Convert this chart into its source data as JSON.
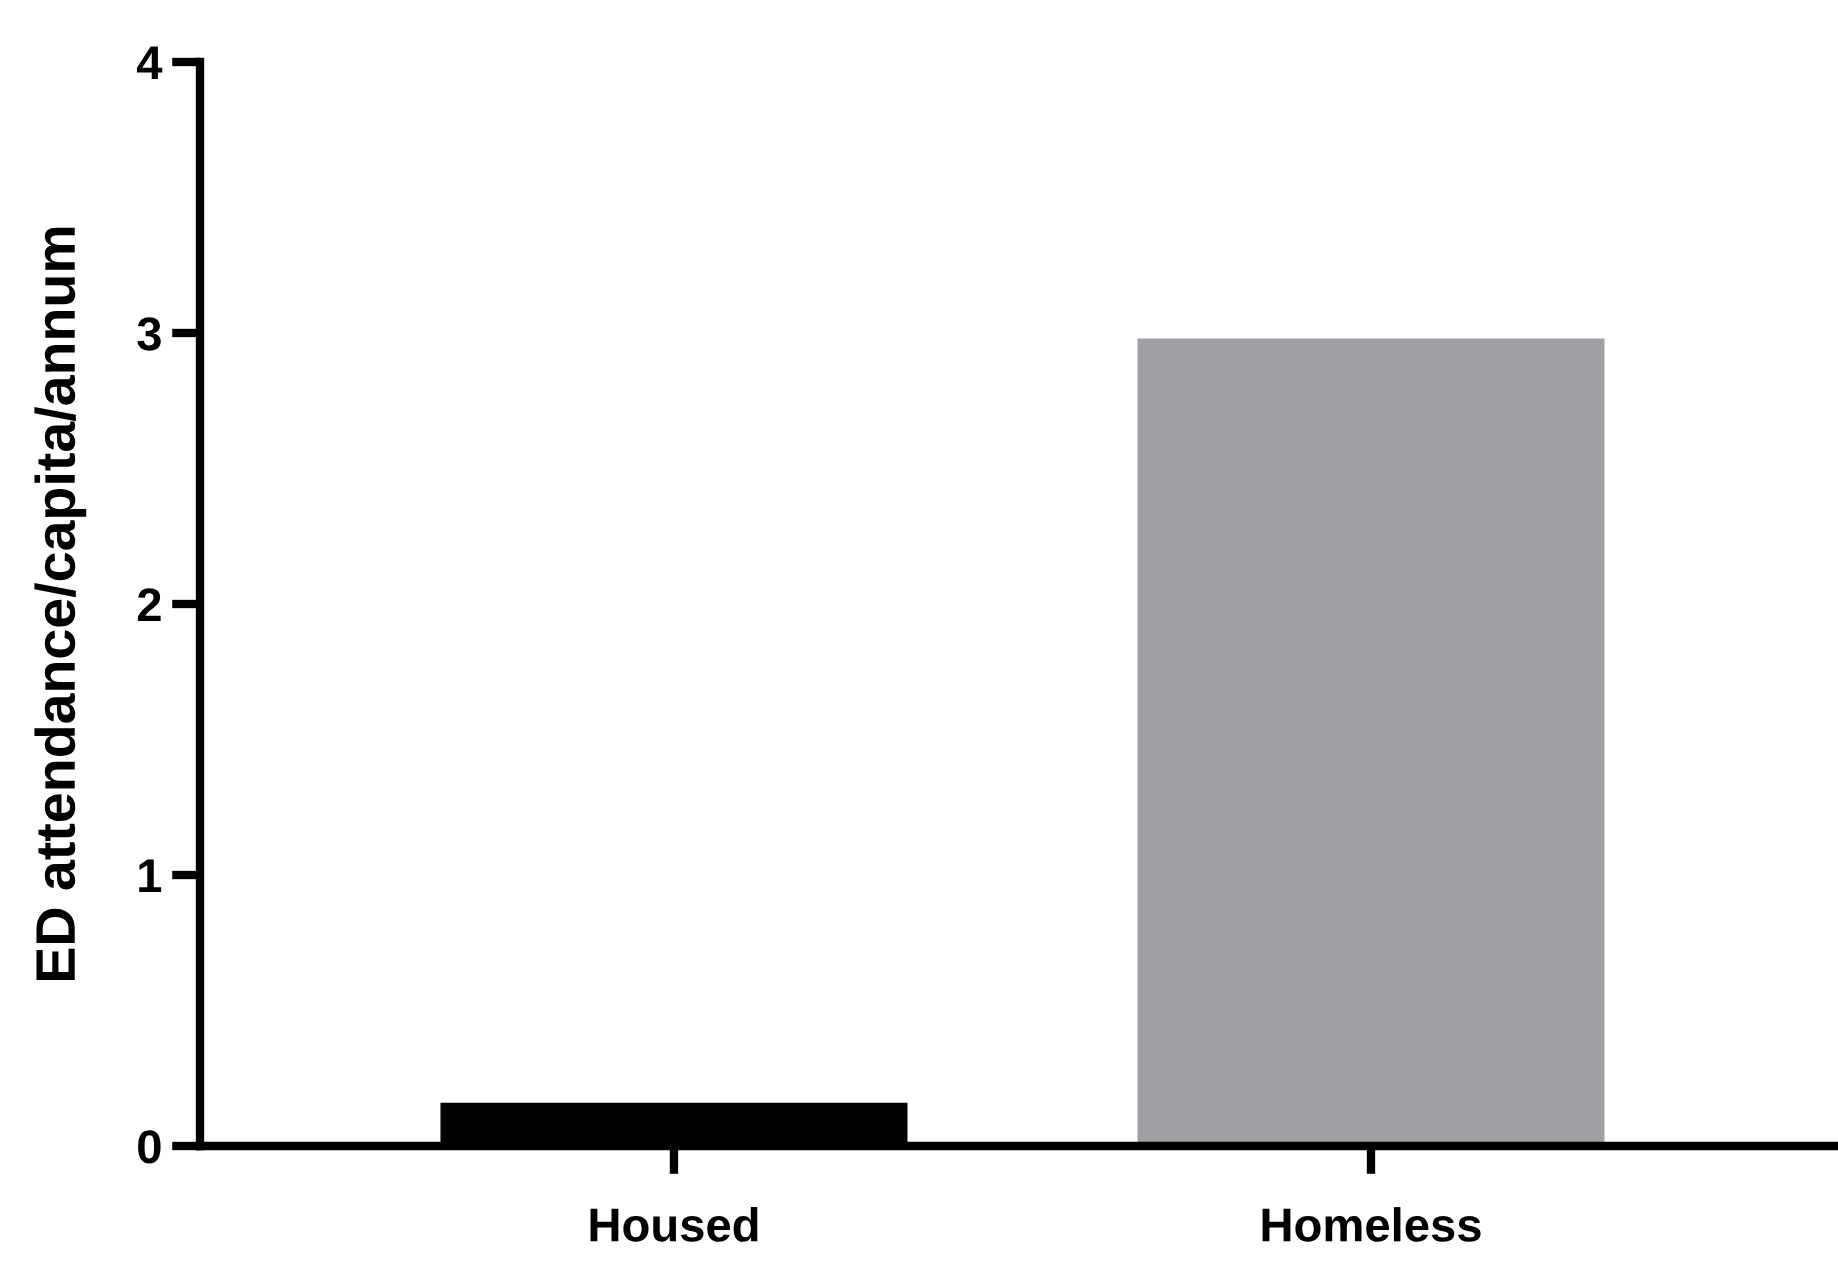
{
  "chart_data": {
    "type": "bar",
    "ylabel": "ED attendance/capita/annum",
    "categories": [
      "Housed",
      "Homeless"
    ],
    "values": [
      0.16,
      2.98
    ],
    "colors": [
      "#000000",
      "#a09fa4"
    ],
    "ylim": [
      0,
      4
    ],
    "yticks": [
      0,
      1,
      2,
      3,
      4
    ],
    "grid": false,
    "legend": false
  }
}
